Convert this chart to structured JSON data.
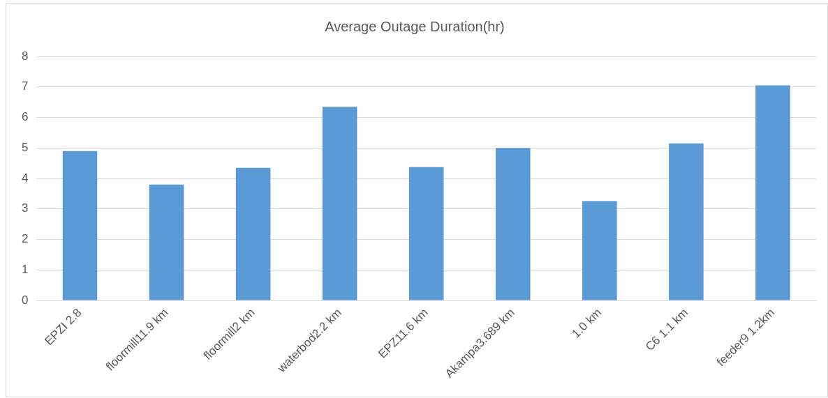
{
  "chart_data": {
    "type": "bar",
    "title": "Average Outage Duration(hr)",
    "categories": [
      "EPZI 2.8",
      "floormill11.9 km",
      "floormill2 km",
      "waterbod2.2 km",
      "EPZ11.6 km",
      "Akampa3.689 km",
      "1.0 km",
      "C6 1.1 km",
      "feeder9 1.2km"
    ],
    "values": [
      4.9,
      3.8,
      4.35,
      6.35,
      4.37,
      5.0,
      3.26,
      5.15,
      7.05
    ],
    "color": "#5b9bd5",
    "ylim": [
      0,
      8
    ],
    "yticks": [
      0,
      1,
      2,
      3,
      4,
      5,
      6,
      7,
      8
    ],
    "grid": "y",
    "legend": false
  }
}
